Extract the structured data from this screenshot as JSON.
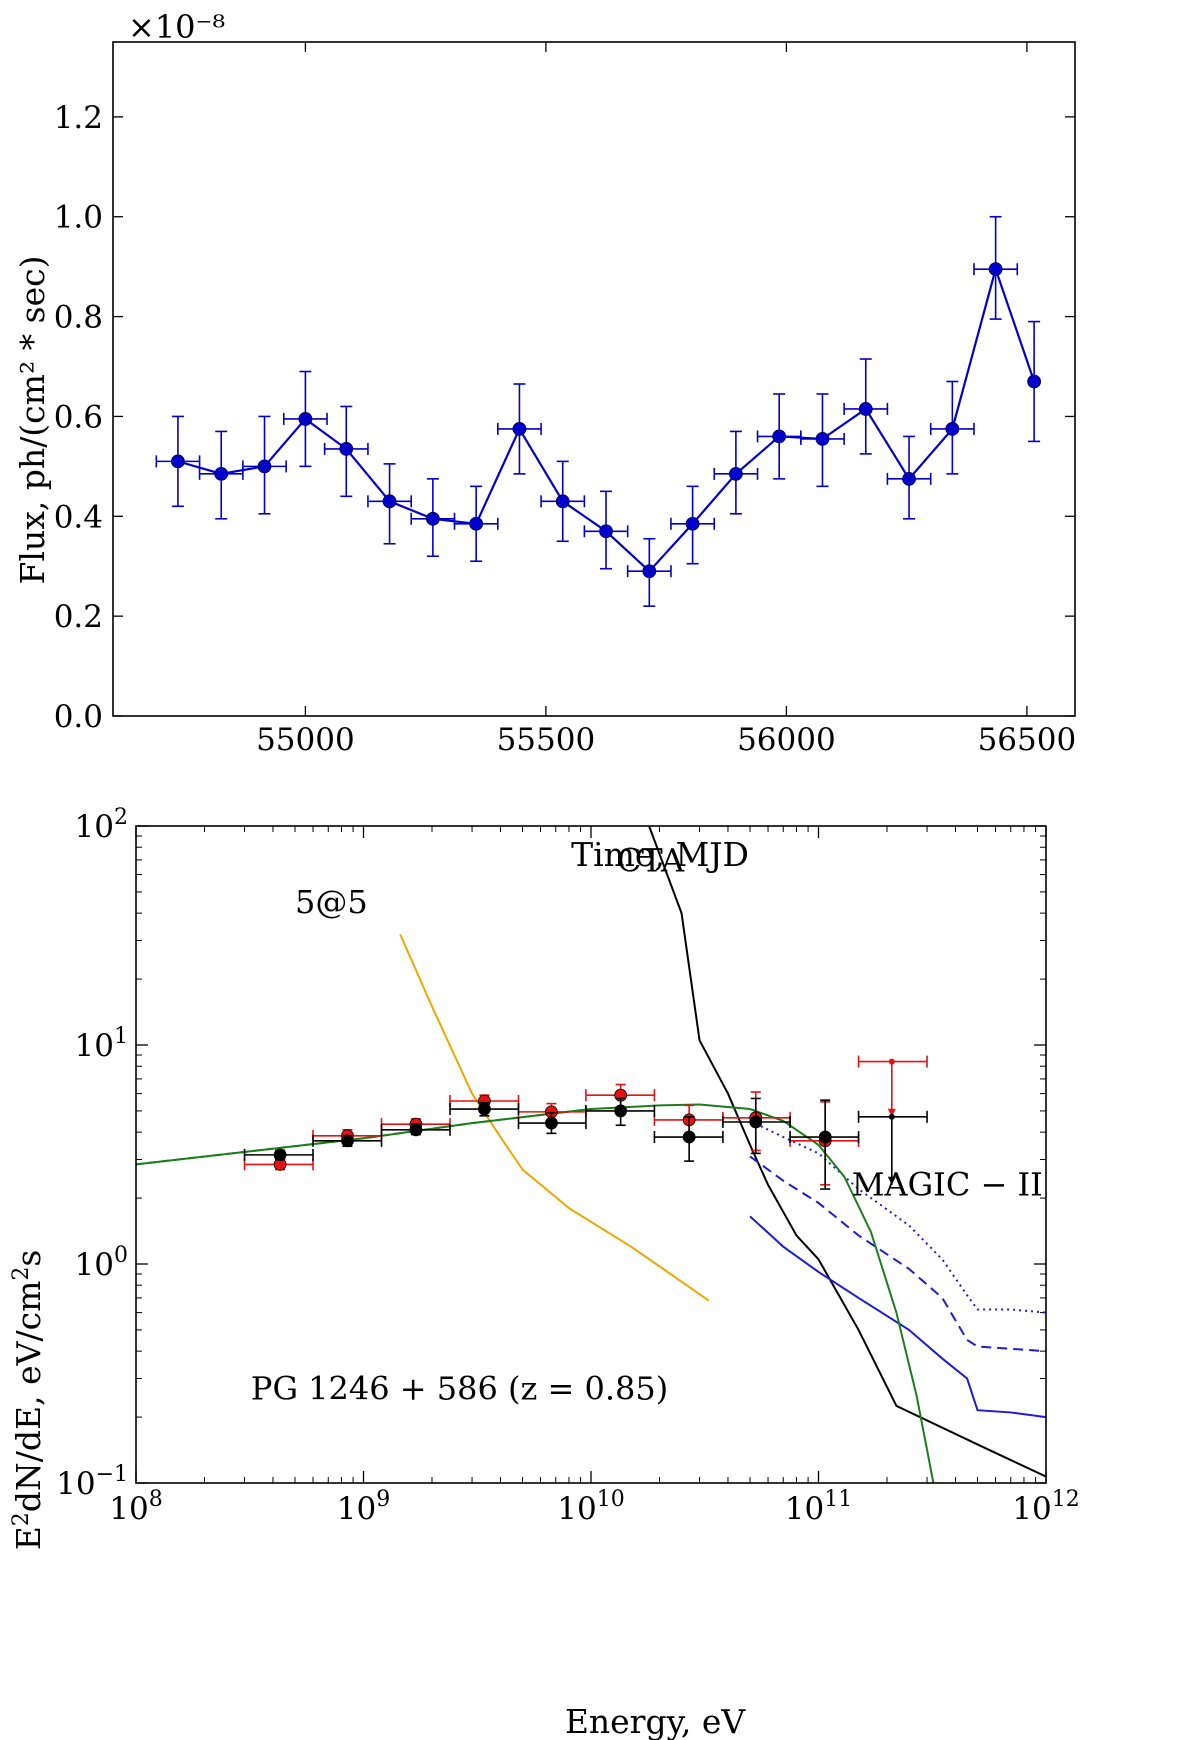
{
  "chart_data": [
    {
      "type": "scatter",
      "connected": true,
      "xlabel": "Time,  MJD",
      "ylabel": "Flux,  ph/(cm² * sec)",
      "offset_text": "×10⁻⁸",
      "xlim": [
        54600,
        56600
      ],
      "ylim": [
        0.0,
        1.35
      ],
      "y_multiplier": "1e-8",
      "xticks": [
        55000,
        55500,
        56000,
        56500
      ],
      "yticks": [
        0.0,
        0.2,
        0.4,
        0.6,
        0.8,
        1.0,
        1.2
      ],
      "xtick_labels": [
        "55000",
        "55500",
        "56000",
        "56500"
      ],
      "ytick_labels": [
        "0.0",
        "0.2",
        "0.4",
        "0.6",
        "0.8",
        "1.0",
        "1.2"
      ],
      "color": "#0000cc",
      "grid": false,
      "series": [
        {
          "points": [
            {
              "x": 54735,
              "y": 0.51,
              "xerr": 45,
              "ylo": 0.42,
              "yhi": 0.6
            },
            {
              "x": 54825,
              "y": 0.485,
              "xerr": 45,
              "ylo": 0.395,
              "yhi": 0.57
            },
            {
              "x": 54915,
              "y": 0.5,
              "xerr": 45,
              "ylo": 0.405,
              "yhi": 0.6
            },
            {
              "x": 55000,
              "y": 0.595,
              "xerr": 45,
              "ylo": 0.5,
              "yhi": 0.69
            },
            {
              "x": 55085,
              "y": 0.535,
              "xerr": 45,
              "ylo": 0.44,
              "yhi": 0.62
            },
            {
              "x": 55175,
              "y": 0.43,
              "xerr": 45,
              "ylo": 0.345,
              "yhi": 0.505
            },
            {
              "x": 55265,
              "y": 0.395,
              "xerr": 45,
              "ylo": 0.32,
              "yhi": 0.475
            },
            {
              "x": 55355,
              "y": 0.385,
              "xerr": 45,
              "ylo": 0.31,
              "yhi": 0.46
            },
            {
              "x": 55445,
              "y": 0.575,
              "xerr": 45,
              "ylo": 0.485,
              "yhi": 0.665
            },
            {
              "x": 55535,
              "y": 0.43,
              "xerr": 45,
              "ylo": 0.35,
              "yhi": 0.51
            },
            {
              "x": 55625,
              "y": 0.37,
              "xerr": 45,
              "ylo": 0.295,
              "yhi": 0.45
            },
            {
              "x": 55715,
              "y": 0.29,
              "xerr": 45,
              "ylo": 0.22,
              "yhi": 0.355
            },
            {
              "x": 55805,
              "y": 0.385,
              "xerr": 45,
              "ylo": 0.305,
              "yhi": 0.46
            },
            {
              "x": 55895,
              "y": 0.485,
              "xerr": 45,
              "ylo": 0.405,
              "yhi": 0.57
            },
            {
              "x": 55985,
              "y": 0.56,
              "xerr": 45,
              "ylo": 0.475,
              "yhi": 0.645
            },
            {
              "x": 56075,
              "y": 0.555,
              "xerr": 45,
              "ylo": 0.46,
              "yhi": 0.645
            },
            {
              "x": 56165,
              "y": 0.615,
              "xerr": 45,
              "ylo": 0.525,
              "yhi": 0.715
            },
            {
              "x": 56255,
              "y": 0.475,
              "xerr": 45,
              "ylo": 0.395,
              "yhi": 0.56
            },
            {
              "x": 56345,
              "y": 0.575,
              "xerr": 45,
              "ylo": 0.485,
              "yhi": 0.67
            },
            {
              "x": 56435,
              "y": 0.895,
              "xerr": 45,
              "ylo": 0.795,
              "yhi": 1.0
            },
            {
              "x": 56515,
              "y": 0.67,
              "xerr": 0,
              "ylo": 0.55,
              "yhi": 0.79
            }
          ]
        }
      ]
    },
    {
      "type": "scatter",
      "xscale": "log",
      "yscale": "log",
      "xlabel": "Energy,  eV",
      "ylabel": "E²dN/dE,  eV/cm²s",
      "xlim": [
        100000000.0,
        1000000000000.0
      ],
      "ylim": [
        0.1,
        100
      ],
      "xtick_labels": [
        {
          "base": "10",
          "exp": "8"
        },
        {
          "base": "10",
          "exp": "9"
        },
        {
          "base": "10",
          "exp": "10"
        },
        {
          "base": "10",
          "exp": "11"
        },
        {
          "base": "10",
          "exp": "12"
        }
      ],
      "ytick_labels": [
        {
          "base": "10",
          "exp": "−1"
        },
        {
          "base": "10",
          "exp": "0"
        },
        {
          "base": "10",
          "exp": "1"
        },
        {
          "base": "10",
          "exp": "2"
        }
      ],
      "xticks": [
        100000000.0,
        1000000000.0,
        10000000000.0,
        100000000000.0,
        1000000000000.0
      ],
      "yticks": [
        0.1,
        1,
        10,
        100
      ],
      "grid": false,
      "annotations": [
        {
          "text": "CTA",
          "x": 13000000000.0,
          "y": 62,
          "color": "#000000"
        },
        {
          "text": "5@5",
          "x": 500000000.0,
          "y": 40,
          "color": "#f0a500"
        },
        {
          "text": "MAGIC − II",
          "x": 140000000000.0,
          "y": 2.05,
          "color": "#1c1cd6"
        },
        {
          "text": "PG 1246 + 586 (z = 0.85)",
          "x": 320000000.0,
          "y": 0.24,
          "color": "#000000"
        }
      ],
      "lines": [
        {
          "name": "CTA",
          "color": "#000000",
          "dash": "none",
          "points": [
            [
              18000000000.0,
              100
            ],
            [
              25000000000.0,
              40
            ],
            [
              30000000000.0,
              10.5
            ],
            [
              40000000000.0,
              6
            ],
            [
              50000000000.0,
              3.5
            ],
            [
              60000000000.0,
              2.3
            ],
            [
              80000000000.0,
              1.35
            ],
            [
              100000000000.0,
              1.05
            ],
            [
              150000000000.0,
              0.5
            ],
            [
              220000000000.0,
              0.225
            ],
            [
              500000000000.0,
              0.15
            ],
            [
              1000000000000.0,
              0.107
            ]
          ]
        },
        {
          "name": "5@5",
          "color": "#f0a500",
          "dash": "none",
          "points": [
            [
              1450000000.0,
              32
            ],
            [
              2000000000.0,
              15
            ],
            [
              3000000000.0,
              6
            ],
            [
              4000000000.0,
              3.8
            ],
            [
              5000000000.0,
              2.7
            ],
            [
              8000000000.0,
              1.8
            ],
            [
              15000000000.0,
              1.2
            ],
            [
              33000000000.0,
              0.68
            ]
          ]
        },
        {
          "name": "MAGIC − II",
          "color": "#1c1cd6",
          "dash": "none",
          "points": [
            [
              50000000000.0,
              1.65
            ],
            [
              70000000000.0,
              1.2
            ],
            [
              100000000000.0,
              0.92
            ],
            [
              150000000000.0,
              0.7
            ],
            [
              250000000000.0,
              0.5
            ],
            [
              350000000000.0,
              0.37
            ],
            [
              450000000000.0,
              0.3
            ],
            [
              500000000000.0,
              0.215
            ],
            [
              700000000000.0,
              0.21
            ],
            [
              1000000000000.0,
              0.2
            ]
          ]
        },
        {
          "name": "MAGIC − II dashed",
          "color": "#1c1cd6",
          "dash": "10,6",
          "points": [
            [
              50000000000.0,
              3.1
            ],
            [
              70000000000.0,
              2.4
            ],
            [
              100000000000.0,
              1.9
            ],
            [
              150000000000.0,
              1.35
            ],
            [
              250000000000.0,
              0.95
            ],
            [
              350000000000.0,
              0.7
            ],
            [
              450000000000.0,
              0.45
            ],
            [
              500000000000.0,
              0.42
            ],
            [
              700000000000.0,
              0.41
            ],
            [
              1000000000000.0,
              0.4
            ]
          ]
        },
        {
          "name": "MAGIC − II dotted",
          "color": "#1c1cd6",
          "dash": "2,4",
          "points": [
            [
              50000000000.0,
              4.5
            ],
            [
              70000000000.0,
              3.8
            ],
            [
              100000000000.0,
              3.2
            ],
            [
              150000000000.0,
              2.2
            ],
            [
              250000000000.0,
              1.5
            ],
            [
              350000000000.0,
              1.05
            ],
            [
              450000000000.0,
              0.72
            ],
            [
              500000000000.0,
              0.62
            ],
            [
              700000000000.0,
              0.62
            ],
            [
              1000000000000.0,
              0.6
            ]
          ]
        },
        {
          "name": "model",
          "color": "#1a7f1a",
          "dash": "none",
          "points": [
            [
              100000000.0,
              2.85
            ],
            [
              1000000000.0,
              3.75
            ],
            [
              3000000000.0,
              4.4
            ],
            [
              10000000000.0,
              5.1
            ],
            [
              20000000000.0,
              5.3
            ],
            [
              30000000000.0,
              5.35
            ],
            [
              50000000000.0,
              5.1
            ],
            [
              70000000000.0,
              4.5
            ],
            [
              100000000000.0,
              3.5
            ],
            [
              130000000000.0,
              2.5
            ],
            [
              170000000000.0,
              1.4
            ],
            [
              220000000000.0,
              0.6
            ],
            [
              270000000000.0,
              0.25
            ],
            [
              320000000000.0,
              0.1
            ]
          ]
        },
        {
          "name": "model dashed",
          "color": "#1a7f1a",
          "dash": "8,5",
          "points": [
            [
              100000000.0,
              2.85
            ],
            [
              1000000000.0,
              3.75
            ],
            [
              3000000000.0,
              4.4
            ],
            [
              10000000000.0,
              5.1
            ]
          ]
        }
      ],
      "series": [
        {
          "name": "red points",
          "color": "#e81010",
          "ecolor": "#e81010",
          "points": [
            {
              "x": 430000000.0,
              "y": 2.85,
              "xlo": 300000000.0,
              "xhi": 600000000.0,
              "ylo": 2.7,
              "yhi": 3.0
            },
            {
              "x": 850000000.0,
              "y": 3.85,
              "xlo": 600000000.0,
              "xhi": 1200000000.0,
              "ylo": 3.6,
              "yhi": 4.1
            },
            {
              "x": 1700000000.0,
              "y": 4.35,
              "xlo": 1200000000.0,
              "xhi": 2400000000.0,
              "ylo": 4.1,
              "yhi": 4.6
            },
            {
              "x": 3400000000.0,
              "y": 5.55,
              "xlo": 2400000000.0,
              "xhi": 4800000000.0,
              "ylo": 5.2,
              "yhi": 5.9
            },
            {
              "x": 6700000000.0,
              "y": 4.95,
              "xlo": 4800000000.0,
              "xhi": 9500000000.0,
              "ylo": 4.5,
              "yhi": 5.4
            },
            {
              "x": 13500000000.0,
              "y": 5.9,
              "xlo": 9500000000.0,
              "xhi": 19000000000.0,
              "ylo": 5.2,
              "yhi": 6.6
            },
            {
              "x": 27000000000.0,
              "y": 4.55,
              "xlo": 19000000000.0,
              "xhi": 38000000000.0,
              "ylo": 3.7,
              "yhi": 5.3
            },
            {
              "x": 53000000000.0,
              "y": 4.65,
              "xlo": 38000000000.0,
              "xhi": 75000000000.0,
              "ylo": 3.3,
              "yhi": 6.1
            },
            {
              "x": 107000000000.0,
              "y": 3.65,
              "xlo": 75000000000.0,
              "xhi": 150000000000.0,
              "ylo": 2.3,
              "yhi": 5.5
            },
            {
              "x": 210000000000.0,
              "y": 8.4,
              "xlo": 150000000000.0,
              "xhi": 300000000000.0,
              "ylo": 4.7,
              "yhi": 8.4,
              "upper_limit": true
            }
          ]
        },
        {
          "name": "black points",
          "color": "#000000",
          "ecolor": "#000000",
          "points": [
            {
              "x": 430000000.0,
              "y": 3.15,
              "xlo": 300000000.0,
              "xhi": 600000000.0,
              "ylo": 3.0,
              "yhi": 3.3
            },
            {
              "x": 850000000.0,
              "y": 3.65,
              "xlo": 600000000.0,
              "xhi": 1200000000.0,
              "ylo": 3.45,
              "yhi": 3.85
            },
            {
              "x": 1700000000.0,
              "y": 4.1,
              "xlo": 1200000000.0,
              "xhi": 2400000000.0,
              "ylo": 3.9,
              "yhi": 4.35
            },
            {
              "x": 3400000000.0,
              "y": 5.1,
              "xlo": 2400000000.0,
              "xhi": 4800000000.0,
              "ylo": 4.75,
              "yhi": 5.45
            },
            {
              "x": 6700000000.0,
              "y": 4.4,
              "xlo": 4800000000.0,
              "xhi": 9500000000.0,
              "ylo": 3.95,
              "yhi": 4.9
            },
            {
              "x": 13500000000.0,
              "y": 5.0,
              "xlo": 9500000000.0,
              "xhi": 19000000000.0,
              "ylo": 4.3,
              "yhi": 5.7
            },
            {
              "x": 27000000000.0,
              "y": 3.8,
              "xlo": 19000000000.0,
              "xhi": 38000000000.0,
              "ylo": 2.95,
              "yhi": 4.7
            },
            {
              "x": 53000000000.0,
              "y": 4.45,
              "xlo": 38000000000.0,
              "xhi": 75000000000.0,
              "ylo": 3.2,
              "yhi": 5.7
            },
            {
              "x": 107000000000.0,
              "y": 3.8,
              "xlo": 75000000000.0,
              "xhi": 150000000000.0,
              "ylo": 2.2,
              "yhi": 5.6
            },
            {
              "x": 210000000000.0,
              "y": 4.7,
              "xlo": 150000000000.0,
              "xhi": 300000000000.0,
              "ylo": 2.3,
              "yhi": 4.7,
              "upper_limit": true
            }
          ]
        }
      ]
    }
  ]
}
